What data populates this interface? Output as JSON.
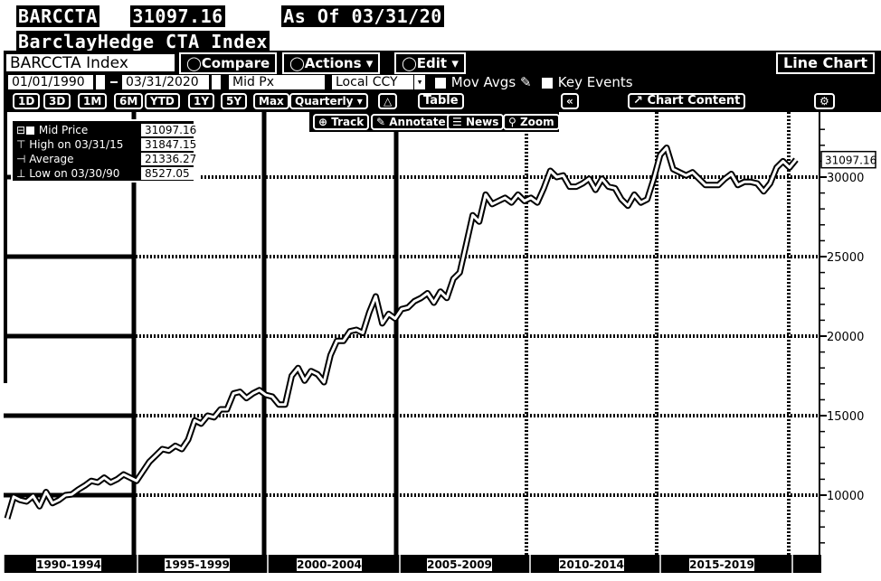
{
  "header": {
    "ticker": "BARCCTA",
    "last_value": "31097.16",
    "as_of": "As Of 03/31/20",
    "index_name": "BarclayHedge CTA Index"
  },
  "toolbar": {
    "security": "BARCCTA Index",
    "compare_label": "Compare",
    "actions_label": "Actions",
    "edit_label": "Edit",
    "chart_type_label": "Line Chart"
  },
  "controls": {
    "start_date": "01/01/1990",
    "end_date": "03/31/2020",
    "field": "Mid Px",
    "currency": "Local CCY",
    "mov_avgs_label": "Mov Avgs",
    "key_events_label": "Key Events"
  },
  "periods": {
    "items": [
      "1D",
      "3D",
      "1M",
      "6M",
      "YTD",
      "1Y",
      "5Y",
      "Max"
    ],
    "frequency": "Quarterly",
    "table_label": "Table",
    "chart_content_label": "Chart Content"
  },
  "tools": {
    "track_label": "Track",
    "annotate_label": "Annotate",
    "news_label": "News",
    "zoom_label": "Zoom"
  },
  "legend": {
    "rows": [
      {
        "label": "Mid Price",
        "value": "31097.16"
      },
      {
        "label": "High on 03/31/15",
        "value": "31847.15"
      },
      {
        "label": "Average",
        "value": "21336.27"
      },
      {
        "label": "Low on 03/30/90",
        "value": "8527.05"
      }
    ]
  },
  "chart_data": {
    "type": "line",
    "series": [
      {
        "name": "Mid Price",
        "values": [
          8527.05,
          9900,
          9700,
          9600,
          9950,
          9300,
          10200,
          9500,
          9700,
          10000,
          10050,
          10350,
          10600,
          10900,
          10800,
          11100,
          10800,
          11000,
          11300,
          11100,
          10900,
          11500,
          12100,
          12500,
          12900,
          12800,
          13100,
          12900,
          13500,
          14700,
          14500,
          15000,
          14900,
          15400,
          15400,
          16400,
          16500,
          16100,
          16400,
          16600,
          16300,
          16200,
          15700,
          15700,
          17500,
          18000,
          17200,
          17800,
          17600,
          17100,
          18800,
          19700,
          19700,
          20300,
          20400,
          20200,
          21500,
          22500,
          20800,
          21400,
          21100,
          21700,
          21800,
          22200,
          22400,
          22700,
          22100,
          22800,
          22400,
          23600,
          24000,
          25800,
          27600,
          27200,
          28900,
          28300,
          28500,
          28700,
          28400,
          28900,
          28500,
          28700,
          28400,
          29300,
          30400,
          30000,
          30100,
          29400,
          29400,
          29600,
          29900,
          29200,
          29900,
          29400,
          29300,
          28600,
          28200,
          28900,
          28400,
          28600,
          29900,
          31400,
          31847.15,
          30500,
          30300,
          30100,
          30300,
          29900,
          29500,
          29500,
          29500,
          29900,
          30200,
          29500,
          29700,
          29700,
          29600,
          29100,
          29600,
          30600,
          31000,
          30600,
          31097.16
        ]
      }
    ],
    "x_range": [
      "01/01/1990",
      "03/31/2020"
    ],
    "x_tick_labels": [
      "1990-1994",
      "1995-1999",
      "2000-2004",
      "2005-2009",
      "2010-2014",
      "2015-2019"
    ],
    "y_ticks": [
      10000,
      15000,
      20000,
      25000,
      30000
    ],
    "y_tick_labels": [
      "10000",
      "15000",
      "20000",
      "25000",
      "30000"
    ],
    "ylim": [
      5000,
      33500
    ],
    "last_price_label": "31097.16",
    "grid": true,
    "legend_position": "top-left"
  },
  "colors": {
    "background": "#ffffff",
    "foreground": "#000000"
  }
}
